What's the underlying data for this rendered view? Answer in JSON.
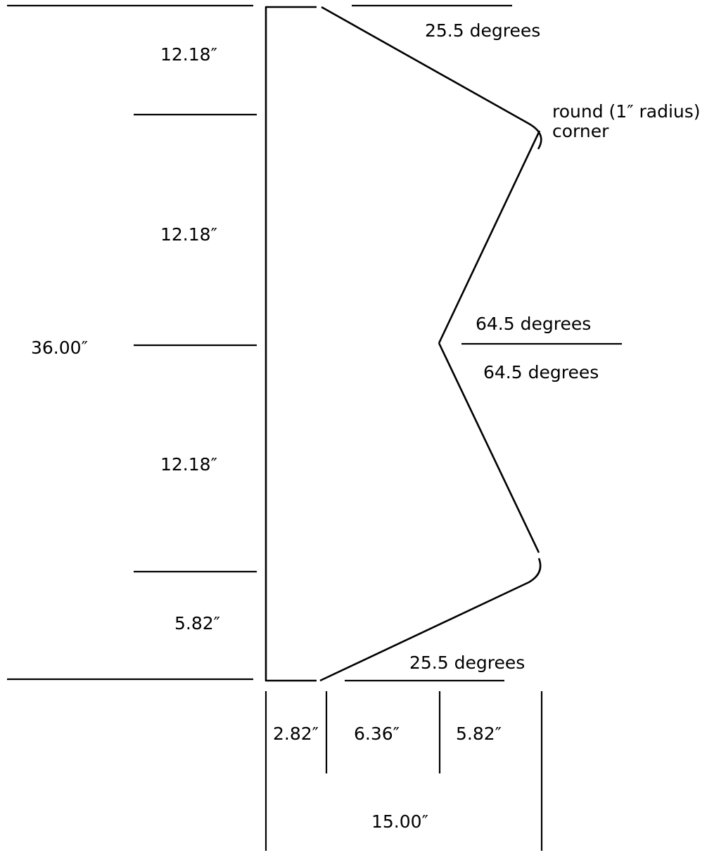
{
  "diagram": {
    "labels": {
      "overall_height": "36.00″",
      "segment_top": "12.18″",
      "segment_upper_middle": "12.18″",
      "segment_lower_middle": "12.18″",
      "segment_bottom": "5.82″",
      "top_angle": "25.5 degrees",
      "mid_angle_upper": "64.5 degrees",
      "mid_angle_lower": "64.5 degrees",
      "bottom_angle": "25.5 degrees",
      "corner_note_line1": "round (1″ radius)",
      "corner_note_line2": "corner",
      "width_offset": "2.82″",
      "width_middle": "6.36″",
      "width_right": "5.82″",
      "overall_width": "15.00″"
    },
    "colors": {
      "stroke": "#000000",
      "background": "#ffffff"
    }
  }
}
